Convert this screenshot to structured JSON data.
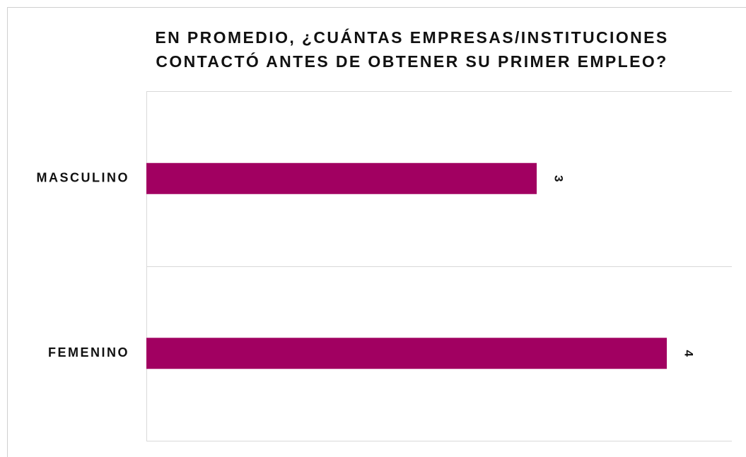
{
  "chart_data": {
    "type": "bar",
    "orientation": "horizontal",
    "title": "EN PROMEDIO, ¿CUÁNTAS EMPRESAS/INSTITUCIONES CONTACTÓ ANTES DE OBTENER SU PRIMER EMPLEO?",
    "categories": [
      "MASCULINO",
      "FEMENINO"
    ],
    "values": [
      3,
      4
    ],
    "color": "#a10061",
    "xlim": [
      0,
      4.5
    ],
    "grid": false
  }
}
